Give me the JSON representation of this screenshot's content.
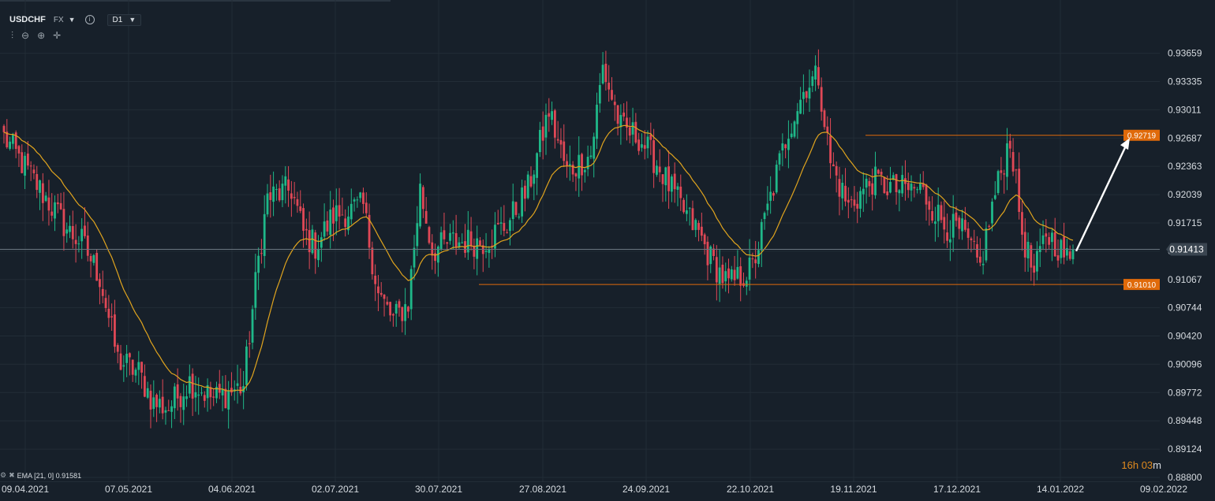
{
  "header": {
    "symbol": "USDCHF",
    "market": "FX",
    "timeframe": "D1",
    "info_icon": "info-icon",
    "dropdown_icon": "caret-down-icon"
  },
  "tools": [
    {
      "name": "chart-type-icon",
      "glyph": "⫶"
    },
    {
      "name": "zoom-out-icon",
      "glyph": "⊖"
    },
    {
      "name": "zoom-in-icon",
      "glyph": "⊕"
    },
    {
      "name": "crosshair-icon",
      "glyph": "✛"
    }
  ],
  "indicator": {
    "label": "EMA [21, 0] 0.91581"
  },
  "countdown": {
    "hours": "16h",
    "minutes": "03",
    "unit": "m"
  },
  "colors": {
    "background": "#17202a",
    "up": "#1fb889",
    "down": "#e04856",
    "ema": "#e0a41e",
    "level": "#e06a0a",
    "arrow": "#ffffff",
    "grid": "#222c36"
  },
  "chart_data": {
    "type": "candlestick",
    "ylim": [
      0.888,
      0.9398
    ],
    "y_ticks": [
      "0.93659",
      "0.93335",
      "0.93011",
      "0.92687",
      "0.92363",
      "0.92039",
      "0.91715",
      "0.91391",
      "0.91067",
      "0.90744",
      "0.90420",
      "0.90096",
      "0.89772",
      "0.89448",
      "0.89124",
      "0.88800"
    ],
    "x_ticks": [
      "09.04.2021",
      "07.05.2021",
      "04.06.2021",
      "02.07.2021",
      "30.07.2021",
      "27.08.2021",
      "24.09.2021",
      "22.10.2021",
      "19.11.2021",
      "17.12.2021",
      "14.01.2022",
      "09.02.2022"
    ],
    "current_price": "0.91413",
    "resistance": {
      "label": "0.92719",
      "value": 0.92719,
      "from": "19.11.2021"
    },
    "support": {
      "label": "0.91010",
      "value": 0.9101,
      "from": "30.07.2021"
    },
    "ema_period": 21,
    "ema_last": 0.91581,
    "price_path": [
      [
        0,
        0.927
      ],
      [
        10,
        0.922
      ],
      [
        22,
        0.916
      ],
      [
        26,
        0.915
      ],
      [
        32,
        0.911
      ],
      [
        38,
        0.9015
      ],
      [
        45,
        0.9
      ],
      [
        50,
        0.8965
      ],
      [
        55,
        0.896
      ],
      [
        62,
        0.899
      ],
      [
        70,
        0.897
      ],
      [
        80,
        0.8985
      ],
      [
        85,
        0.913
      ],
      [
        88,
        0.92
      ],
      [
        96,
        0.921
      ],
      [
        100,
        0.916
      ],
      [
        104,
        0.9145
      ],
      [
        110,
        0.918
      ],
      [
        120,
        0.919
      ],
      [
        125,
        0.909
      ],
      [
        130,
        0.906
      ],
      [
        135,
        0.908
      ],
      [
        139,
        0.921
      ],
      [
        143,
        0.914
      ],
      [
        150,
        0.915
      ],
      [
        160,
        0.915
      ],
      [
        168,
        0.917
      ],
      [
        175,
        0.921
      ],
      [
        182,
        0.93
      ],
      [
        188,
        0.923
      ],
      [
        196,
        0.925
      ],
      [
        200,
        0.935
      ],
      [
        206,
        0.928
      ],
      [
        212,
        0.927
      ],
      [
        218,
        0.924
      ],
      [
        226,
        0.919
      ],
      [
        232,
        0.916
      ],
      [
        236,
        0.913
      ],
      [
        242,
        0.91
      ],
      [
        250,
        0.912
      ],
      [
        256,
        0.92
      ],
      [
        262,
        0.928
      ],
      [
        268,
        0.933
      ],
      [
        272,
        0.934
      ],
      [
        276,
        0.924
      ],
      [
        282,
        0.919
      ],
      [
        290,
        0.922
      ],
      [
        298,
        0.921
      ],
      [
        306,
        0.921
      ],
      [
        314,
        0.917
      ],
      [
        320,
        0.916
      ],
      [
        326,
        0.912
      ],
      [
        330,
        0.919
      ],
      [
        336,
        0.927
      ],
      [
        340,
        0.916
      ],
      [
        344,
        0.911
      ],
      [
        348,
        0.916
      ],
      [
        352,
        0.9145
      ],
      [
        356,
        0.9125
      ],
      [
        357,
        0.9141
      ]
    ],
    "forecast_arrow": {
      "from": 0.9141,
      "to": 0.9258
    }
  }
}
